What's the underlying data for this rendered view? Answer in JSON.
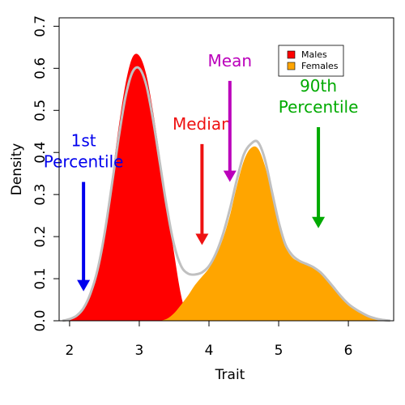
{
  "chart_data": {
    "type": "area",
    "title": "",
    "xlabel": "Trait",
    "ylabel": "Density",
    "xlim": [
      1.85,
      6.65
    ],
    "ylim": [
      0,
      0.72
    ],
    "x_ticks": [
      "2",
      "3",
      "4",
      "5",
      "6"
    ],
    "y_ticks": [
      "0.0",
      "0.1",
      "0.2",
      "0.3",
      "0.4",
      "0.5",
      "0.6",
      "0.7"
    ],
    "grid": false,
    "legend": {
      "placement": "top-right",
      "entries": [
        "Males",
        "Females"
      ]
    },
    "series": [
      {
        "name": "Males",
        "color": "#ff0000",
        "x": [
          1.9,
          2.0,
          2.1,
          2.2,
          2.3,
          2.4,
          2.5,
          2.6,
          2.7,
          2.8,
          2.9,
          3.0,
          3.1,
          3.2,
          3.3,
          3.4,
          3.5,
          3.6,
          3.7
        ],
        "y": [
          0.0,
          0.004,
          0.012,
          0.03,
          0.065,
          0.125,
          0.215,
          0.33,
          0.455,
          0.56,
          0.625,
          0.63,
          0.585,
          0.495,
          0.385,
          0.27,
          0.16,
          0.06,
          0.0
        ]
      },
      {
        "name": "Females",
        "color": "#ffa500",
        "x": [
          3.3,
          3.4,
          3.5,
          3.6,
          3.7,
          3.8,
          3.9,
          4.0,
          4.1,
          4.2,
          4.3,
          4.4,
          4.5,
          4.6,
          4.7,
          4.8,
          4.9,
          5.0,
          5.1,
          5.2,
          5.3,
          5.4,
          5.5,
          5.6,
          5.7,
          5.8,
          5.9,
          6.0,
          6.1,
          6.2,
          6.3,
          6.4,
          6.5,
          6.6
        ],
        "y": [
          0.0,
          0.005,
          0.018,
          0.038,
          0.06,
          0.085,
          0.105,
          0.125,
          0.155,
          0.195,
          0.25,
          0.32,
          0.38,
          0.41,
          0.41,
          0.37,
          0.3,
          0.225,
          0.175,
          0.15,
          0.14,
          0.132,
          0.125,
          0.112,
          0.095,
          0.075,
          0.055,
          0.04,
          0.028,
          0.018,
          0.01,
          0.005,
          0.002,
          0.0
        ]
      },
      {
        "name": "",
        "color": "#c0c0c0",
        "x": [
          1.9,
          2.0,
          2.1,
          2.2,
          2.3,
          2.4,
          2.5,
          2.6,
          2.7,
          2.8,
          2.9,
          3.0,
          3.1,
          3.2,
          3.3,
          3.4,
          3.5,
          3.6,
          3.7,
          3.8,
          3.9,
          4.0,
          4.1,
          4.2,
          4.3,
          4.4,
          4.5,
          4.6,
          4.7,
          4.8,
          4.9,
          5.0,
          5.1,
          5.2,
          5.3,
          5.4,
          5.5,
          5.6,
          5.7,
          5.8,
          5.9,
          6.0,
          6.1,
          6.2,
          6.3,
          6.4,
          6.5,
          6.6
        ],
        "y": [
          0.0,
          0.004,
          0.012,
          0.03,
          0.065,
          0.12,
          0.205,
          0.315,
          0.43,
          0.53,
          0.59,
          0.6,
          0.56,
          0.475,
          0.37,
          0.265,
          0.18,
          0.13,
          0.112,
          0.11,
          0.115,
          0.13,
          0.16,
          0.205,
          0.265,
          0.335,
          0.395,
          0.42,
          0.425,
          0.385,
          0.31,
          0.235,
          0.18,
          0.155,
          0.142,
          0.135,
          0.127,
          0.115,
          0.097,
          0.077,
          0.057,
          0.04,
          0.028,
          0.018,
          0.01,
          0.005,
          0.002,
          0.0
        ]
      }
    ],
    "annotations": [
      {
        "lines": [
          "1st",
          "Percentile"
        ],
        "color": "#0000ee",
        "x": 2.2,
        "arrow_from": 0.33,
        "arrow_to": 0.07
      },
      {
        "lines": [
          "Median"
        ],
        "color": "#ee1111",
        "x": 3.9,
        "arrow_from": 0.42,
        "arrow_to": 0.18
      },
      {
        "lines": [
          "Mean"
        ],
        "color": "#bb00bb",
        "x": 4.3,
        "arrow_from": 0.57,
        "arrow_to": 0.33
      },
      {
        "lines": [
          "90th",
          "Percentile"
        ],
        "color": "#00aa00",
        "x": 5.57,
        "arrow_from": 0.46,
        "arrow_to": 0.22
      }
    ]
  }
}
